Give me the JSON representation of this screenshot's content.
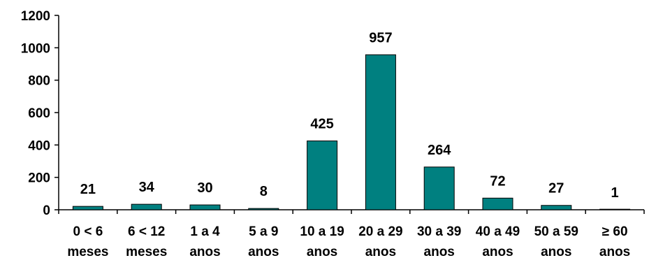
{
  "chart_data": {
    "type": "bar",
    "categories": [
      [
        "0 < 6",
        "meses"
      ],
      [
        "6 < 12",
        "meses"
      ],
      [
        "1 a 4",
        "anos"
      ],
      [
        "5 a 9",
        "anos"
      ],
      [
        "10 a 19",
        "anos"
      ],
      [
        "20 a 29",
        "anos"
      ],
      [
        "30 a 39",
        "anos"
      ],
      [
        "40 a 49",
        "anos"
      ],
      [
        "50 a 59",
        "anos"
      ],
      [
        "≥ 60",
        "anos"
      ]
    ],
    "values": [
      21,
      34,
      30,
      8,
      425,
      957,
      264,
      72,
      27,
      1
    ],
    "data_labels": [
      "21",
      "34",
      "30",
      "8",
      "425",
      "957",
      "264",
      "72",
      "27",
      "1"
    ],
    "y_ticks": [
      "0",
      "200",
      "400",
      "600",
      "800",
      "1000",
      "1200"
    ],
    "ylim": [
      0,
      1200
    ],
    "grid": false,
    "legend": "none",
    "colors": {
      "bar": "#008080",
      "bar_stroke": "#000000",
      "axis": "#000000"
    }
  }
}
